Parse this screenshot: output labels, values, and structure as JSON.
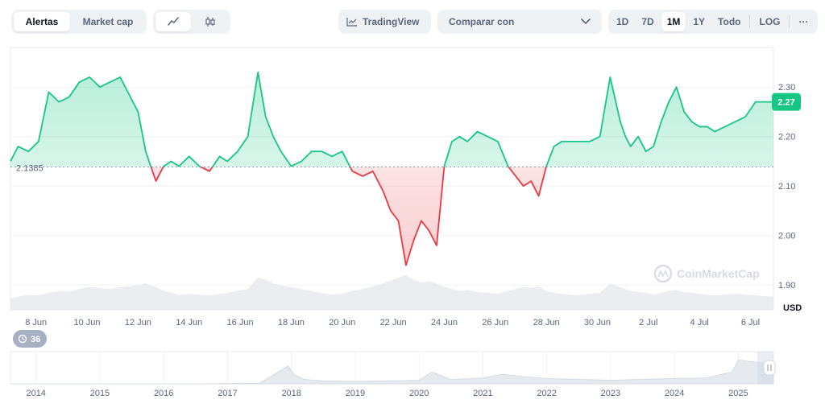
{
  "toolbar": {
    "tabs": [
      {
        "label": "Alertas",
        "active": true
      },
      {
        "label": "Market cap",
        "active": false
      }
    ],
    "chart_type_icons": [
      "line-chart-icon",
      "candlestick-icon"
    ],
    "tradingview_label": "TradingView",
    "compare_label": "Comparar con",
    "timeframes": [
      {
        "label": "1D",
        "active": false
      },
      {
        "label": "7D",
        "active": false
      },
      {
        "label": "1M",
        "active": true
      },
      {
        "label": "1Y",
        "active": false
      },
      {
        "label": "Todo",
        "active": false
      }
    ],
    "log_label": "LOG",
    "more_label": "···"
  },
  "badges": {
    "history_count": "36"
  },
  "watermark": "CoinMarketCap",
  "colors": {
    "up": "#16c784",
    "down": "#ea3943",
    "up_fill": "#16c784",
    "down_fill": "#ea3943",
    "baseline_label": "#58667e",
    "current_badge": "#16c784"
  },
  "chart_data": {
    "type": "line",
    "currency": "USD",
    "baseline": 2.1385,
    "baseline_label": "2.1385",
    "current_value_label": "2.27",
    "current_value": 2.27,
    "y_ticks": [
      1.9,
      2.0,
      2.1,
      2.2,
      2.3
    ],
    "y_tick_labels": [
      "1.90",
      "2.00",
      "2.10",
      "2.20",
      "2.30"
    ],
    "ylim": [
      1.85,
      2.38
    ],
    "x_tick_labels": [
      "8 Jun",
      "10 Jun",
      "12 Jun",
      "14 Jun",
      "16 Jun",
      "18 Jun",
      "20 Jun",
      "22 Jun",
      "24 Jun",
      "26 Jun",
      "28 Jun",
      "30 Jun",
      "2 Jul",
      "4 Jul",
      "6 Jul"
    ],
    "x_ticks": [
      7.5,
      9.5,
      11.5,
      13.5,
      15.5,
      17.5,
      19.5,
      21.5,
      23.5,
      25.5,
      27.5,
      29.5,
      31.5,
      33.5,
      35.5
    ],
    "xlim": [
      6.5,
      36.4
    ],
    "x": [
      6.5,
      6.8,
      7.2,
      7.6,
      8.0,
      8.4,
      8.8,
      9.2,
      9.6,
      10.0,
      10.4,
      10.8,
      11.2,
      11.5,
      11.8,
      12.2,
      12.5,
      12.8,
      13.1,
      13.5,
      13.9,
      14.3,
      14.7,
      15.0,
      15.4,
      15.8,
      16.2,
      16.5,
      16.8,
      17.1,
      17.5,
      17.9,
      18.3,
      18.7,
      19.1,
      19.5,
      19.9,
      20.3,
      20.7,
      21.1,
      21.4,
      21.7,
      22.0,
      22.3,
      22.6,
      22.9,
      23.2,
      23.5,
      23.8,
      24.1,
      24.4,
      24.8,
      25.2,
      25.6,
      26.0,
      26.3,
      26.6,
      26.9,
      27.2,
      27.5,
      27.8,
      28.1,
      28.4,
      28.8,
      29.2,
      29.6,
      30.0,
      30.4,
      30.6,
      30.8,
      31.1,
      31.4,
      31.7,
      32.0,
      32.3,
      32.6,
      32.9,
      33.2,
      33.5,
      33.8,
      34.1,
      34.5,
      34.9,
      35.3,
      35.7,
      36.1,
      36.4
    ],
    "values": [
      2.15,
      2.18,
      2.17,
      2.19,
      2.29,
      2.27,
      2.28,
      2.31,
      2.32,
      2.3,
      2.31,
      2.32,
      2.28,
      2.25,
      2.17,
      2.11,
      2.14,
      2.15,
      2.14,
      2.16,
      2.14,
      2.13,
      2.16,
      2.15,
      2.17,
      2.2,
      2.33,
      2.24,
      2.2,
      2.17,
      2.14,
      2.15,
      2.17,
      2.17,
      2.16,
      2.17,
      2.13,
      2.12,
      2.13,
      2.09,
      2.05,
      2.03,
      1.94,
      1.99,
      2.03,
      2.01,
      1.98,
      2.14,
      2.19,
      2.2,
      2.19,
      2.21,
      2.2,
      2.19,
      2.14,
      2.12,
      2.1,
      2.11,
      2.08,
      2.14,
      2.18,
      2.19,
      2.19,
      2.19,
      2.19,
      2.2,
      2.32,
      2.23,
      2.2,
      2.18,
      2.2,
      2.17,
      2.18,
      2.23,
      2.27,
      2.3,
      2.25,
      2.23,
      2.22,
      2.22,
      2.21,
      2.22,
      2.23,
      2.24,
      2.27,
      2.27,
      2.27
    ],
    "volume": [
      0.3,
      0.35,
      0.4,
      0.38,
      0.45,
      0.5,
      0.48,
      0.55,
      0.6,
      0.58,
      0.55,
      0.6,
      0.62,
      0.66,
      0.7,
      0.6,
      0.5,
      0.45,
      0.4,
      0.42,
      0.4,
      0.38,
      0.42,
      0.45,
      0.5,
      0.55,
      0.85,
      0.8,
      0.7,
      0.65,
      0.6,
      0.55,
      0.5,
      0.45,
      0.4,
      0.42,
      0.5,
      0.55,
      0.62,
      0.7,
      0.78,
      0.85,
      0.92,
      0.8,
      0.72,
      0.75,
      0.7,
      0.6,
      0.55,
      0.5,
      0.52,
      0.48,
      0.45,
      0.42,
      0.5,
      0.55,
      0.6,
      0.58,
      0.62,
      0.5,
      0.45,
      0.42,
      0.4,
      0.38,
      0.42,
      0.45,
      0.7,
      0.6,
      0.55,
      0.5,
      0.48,
      0.45,
      0.4,
      0.45,
      0.5,
      0.52,
      0.48,
      0.45,
      0.42,
      0.4,
      0.38,
      0.4,
      0.42,
      0.4,
      0.38,
      0.36,
      0.35
    ],
    "navigator": {
      "x_tick_labels": [
        "2014",
        "2015",
        "2016",
        "2017",
        "2018",
        "2019",
        "2020",
        "2021",
        "2022",
        "2023",
        "2024",
        "2025"
      ],
      "x_ticks": [
        2014,
        2015,
        2016,
        2017,
        2018,
        2019,
        2020,
        2021,
        2022,
        2023,
        2024,
        2025
      ],
      "xlim": [
        2013.6,
        2025.55
      ],
      "x": [
        2013.6,
        2014.5,
        2015.5,
        2016.5,
        2017.5,
        2017.95,
        2018.05,
        2018.2,
        2018.5,
        2019.0,
        2019.5,
        2020.0,
        2020.2,
        2020.5,
        2021.0,
        2021.3,
        2021.6,
        2022.0,
        2022.5,
        2023.0,
        2023.5,
        2024.0,
        2024.5,
        2024.9,
        2025.0,
        2025.2,
        2025.4,
        2025.55
      ],
      "values": [
        0.0,
        0.0,
        0.0,
        0.0,
        0.02,
        0.6,
        0.3,
        0.15,
        0.1,
        0.08,
        0.1,
        0.12,
        0.4,
        0.14,
        0.2,
        0.32,
        0.25,
        0.18,
        0.15,
        0.12,
        0.15,
        0.18,
        0.2,
        0.4,
        0.8,
        0.75,
        0.7,
        0.6
      ]
    }
  }
}
